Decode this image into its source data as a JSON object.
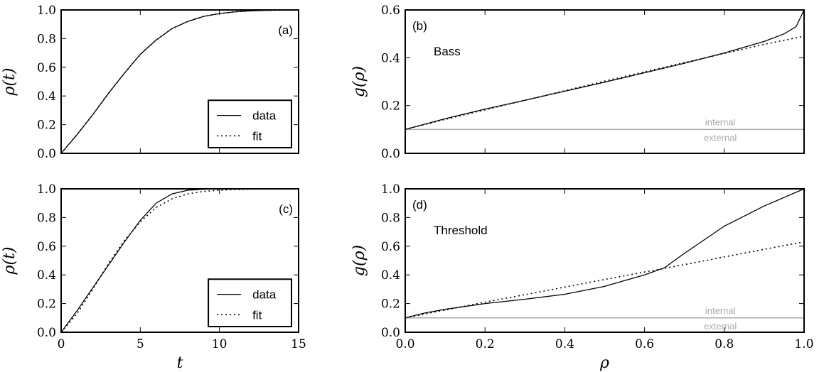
{
  "chart_data": [
    {
      "id": "a",
      "type": "line",
      "panel_label": "(a)",
      "xlabel": "",
      "ylabel": "ρ(t)",
      "xlim": [
        0,
        15
      ],
      "ylim": [
        0,
        1.0
      ],
      "xticks": [],
      "yticks": [
        "0.0",
        "0.2",
        "0.4",
        "0.6",
        "0.8",
        "1.0"
      ],
      "legend": {
        "position": "lower-right",
        "entries": [
          "data",
          "fit"
        ]
      },
      "series": [
        {
          "name": "data",
          "style": "solid",
          "x": [
            0,
            1,
            2,
            3,
            4,
            5,
            6,
            7,
            8,
            9,
            10,
            11,
            12,
            13,
            14,
            15
          ],
          "y": [
            0.0,
            0.13,
            0.27,
            0.42,
            0.56,
            0.69,
            0.79,
            0.87,
            0.92,
            0.955,
            0.975,
            0.987,
            0.994,
            0.997,
            0.999,
            1.0
          ]
        },
        {
          "name": "fit",
          "style": "dotted",
          "x": [
            0,
            1,
            2,
            3,
            4,
            5,
            6,
            7,
            8,
            9,
            10,
            11,
            12,
            13,
            14,
            15
          ],
          "y": [
            0.0,
            0.13,
            0.27,
            0.42,
            0.56,
            0.69,
            0.79,
            0.87,
            0.92,
            0.955,
            0.975,
            0.987,
            0.994,
            0.997,
            0.999,
            1.0
          ]
        }
      ]
    },
    {
      "id": "b",
      "type": "line",
      "panel_label": "(b)",
      "annotation": "Bass",
      "xlabel": "",
      "ylabel": "g(ρ)",
      "xlim": [
        0,
        1.0
      ],
      "ylim": [
        0,
        0.6
      ],
      "xticks": [],
      "yticks": [
        "0.0",
        "0.2",
        "0.4",
        "0.6"
      ],
      "reference_line": {
        "y": 0.1,
        "label_above": "internal",
        "label_below": "external"
      },
      "series": [
        {
          "name": "data",
          "style": "solid",
          "x": [
            0,
            0.1,
            0.2,
            0.3,
            0.4,
            0.5,
            0.6,
            0.7,
            0.8,
            0.9,
            0.95,
            0.98,
            1.0
          ],
          "y": [
            0.1,
            0.145,
            0.185,
            0.222,
            0.26,
            0.298,
            0.337,
            0.377,
            0.42,
            0.468,
            0.5,
            0.53,
            0.6
          ]
        },
        {
          "name": "fit",
          "style": "dotted",
          "x": [
            0,
            0.1,
            0.2,
            0.3,
            0.4,
            0.5,
            0.6,
            0.7,
            0.8,
            0.9,
            1.0
          ],
          "y": [
            0.1,
            0.142,
            0.182,
            0.222,
            0.262,
            0.302,
            0.341,
            0.38,
            0.418,
            0.456,
            0.49
          ]
        }
      ]
    },
    {
      "id": "c",
      "type": "line",
      "panel_label": "(c)",
      "xlabel": "t",
      "ylabel": "ρ(t)",
      "xlim": [
        0,
        15
      ],
      "ylim": [
        0,
        1.0
      ],
      "xticks": [
        "0",
        "5",
        "10",
        "15"
      ],
      "yticks": [
        "0.0",
        "0.2",
        "0.4",
        "0.6",
        "0.8",
        "1.0"
      ],
      "legend": {
        "position": "lower-right",
        "entries": [
          "data",
          "fit"
        ]
      },
      "series": [
        {
          "name": "data",
          "style": "solid",
          "x": [
            0,
            1,
            2,
            3,
            4,
            5,
            6,
            7,
            8,
            9,
            10,
            11,
            12,
            13,
            14,
            15
          ],
          "y": [
            0.0,
            0.15,
            0.31,
            0.47,
            0.63,
            0.78,
            0.9,
            0.965,
            0.99,
            0.997,
            1.0,
            1.0,
            1.0,
            1.0,
            1.0,
            1.0
          ]
        },
        {
          "name": "fit",
          "style": "dotted",
          "x": [
            0,
            1,
            2,
            3,
            4,
            5,
            6,
            7,
            8,
            9,
            10,
            11,
            12,
            13,
            14,
            15
          ],
          "y": [
            0.0,
            0.13,
            0.3,
            0.48,
            0.64,
            0.77,
            0.87,
            0.93,
            0.965,
            0.982,
            0.99,
            0.995,
            0.998,
            0.999,
            1.0,
            1.0
          ]
        }
      ]
    },
    {
      "id": "d",
      "type": "line",
      "panel_label": "(d)",
      "annotation": "Threshold",
      "xlabel": "ρ",
      "ylabel": "g(ρ)",
      "xlim": [
        0,
        1.0
      ],
      "ylim": [
        0,
        1.0
      ],
      "xticks": [
        "0.0",
        "0.2",
        "0.4",
        "0.6",
        "0.8",
        "1.0"
      ],
      "yticks": [
        "0.0",
        "0.2",
        "0.4",
        "0.6",
        "0.8",
        "1.0"
      ],
      "reference_line": {
        "y": 0.1,
        "label_above": "internal",
        "label_below": "external"
      },
      "series": [
        {
          "name": "data",
          "style": "solid",
          "x": [
            0,
            0.05,
            0.1,
            0.2,
            0.3,
            0.4,
            0.5,
            0.55,
            0.6,
            0.65,
            0.7,
            0.8,
            0.9,
            1.0
          ],
          "y": [
            0.1,
            0.135,
            0.16,
            0.2,
            0.23,
            0.265,
            0.32,
            0.36,
            0.4,
            0.45,
            0.55,
            0.74,
            0.88,
            1.0
          ]
        },
        {
          "name": "fit",
          "style": "dotted",
          "x": [
            0,
            0.1,
            0.2,
            0.3,
            0.4,
            0.5,
            0.6,
            0.7,
            0.8,
            0.9,
            1.0
          ],
          "y": [
            0.1,
            0.155,
            0.21,
            0.262,
            0.315,
            0.368,
            0.42,
            0.472,
            0.525,
            0.578,
            0.63
          ]
        }
      ]
    }
  ]
}
